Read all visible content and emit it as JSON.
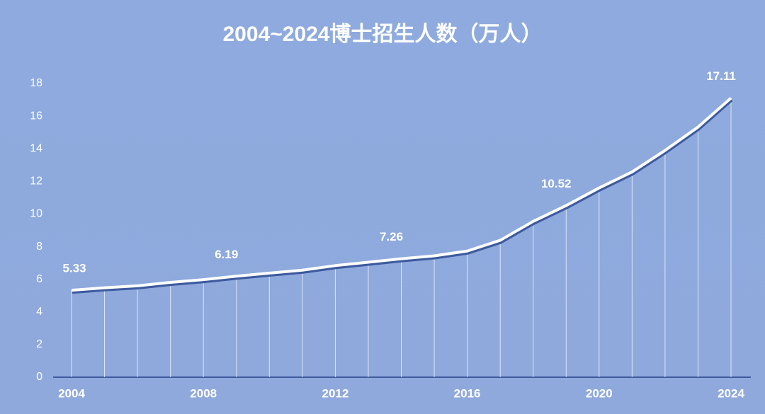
{
  "chart_data": {
    "type": "line",
    "title": "2004~2024博士招生人数（万人）",
    "x": [
      2004,
      2005,
      2006,
      2007,
      2008,
      2009,
      2010,
      2011,
      2012,
      2013,
      2014,
      2015,
      2016,
      2017,
      2018,
      2019,
      2020,
      2021,
      2022,
      2023,
      2024
    ],
    "series": [
      {
        "name": "博士招生人数",
        "color": "#ffffff",
        "values": [
          5.33,
          5.48,
          5.6,
          5.81,
          5.98,
          6.19,
          6.38,
          6.56,
          6.84,
          7.05,
          7.26,
          7.44,
          7.73,
          8.39,
          9.55,
          10.52,
          11.6,
          12.58,
          13.9,
          15.33,
          17.11
        ],
        "value_labels": [
          "5.33",
          null,
          null,
          null,
          null,
          "6.19",
          null,
          null,
          null,
          null,
          "7.26",
          null,
          null,
          null,
          null,
          "10.52",
          null,
          null,
          null,
          null,
          "17.11"
        ]
      }
    ],
    "xlim": [
      2004,
      2024
    ],
    "xticks": [
      2004,
      2008,
      2012,
      2016,
      2020,
      2024
    ],
    "ylim": [
      0,
      18
    ],
    "yticks": [
      0,
      2,
      4,
      6,
      8,
      10,
      12,
      14,
      16,
      18
    ],
    "drop_lines": true
  }
}
